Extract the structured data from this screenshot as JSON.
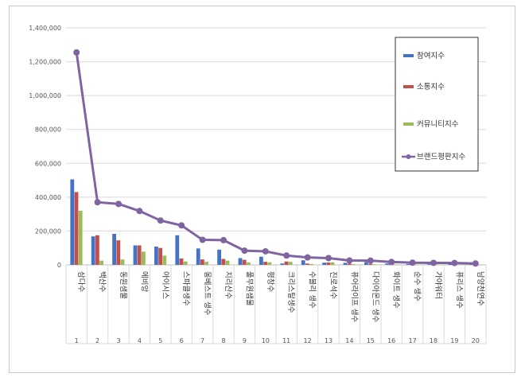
{
  "chart_data": {
    "type": "bar",
    "categories": [
      "삼다수",
      "백산수",
      "동원샘물",
      "에비앙",
      "아이시스",
      "스파클생수",
      "몽베스트 생수",
      "지리산수",
      "풀무원샘물",
      "평창수",
      "크리스탈생수",
      "수블리 생수",
      "진로석수",
      "퓨어라이프 생수",
      "다이아몬드 생수",
      "화이트 생수",
      "순수 생수",
      "가야워터",
      "퓨리스 생수",
      "남양천연수"
    ],
    "ranks": [
      "1",
      "2",
      "3",
      "4",
      "5",
      "6",
      "7",
      "8",
      "9",
      "10",
      "11",
      "12",
      "13",
      "14",
      "15",
      "16",
      "17",
      "18",
      "19",
      "20"
    ],
    "series": [
      {
        "name": "참여지수",
        "kind": "bar",
        "color": "#4472c4",
        "values": [
          505000,
          168000,
          183000,
          115000,
          108000,
          175000,
          97000,
          90000,
          40000,
          48000,
          8000,
          27000,
          13000,
          12000,
          17000,
          8000,
          5000,
          4000,
          5000,
          6000
        ]
      },
      {
        "name": "소통지수",
        "kind": "bar",
        "color": "#c0504d",
        "values": [
          430000,
          175000,
          145000,
          115000,
          100000,
          38000,
          32000,
          35000,
          30000,
          18000,
          20000,
          8000,
          14000,
          8000,
          6000,
          4000,
          3000,
          3000,
          3000,
          2000
        ]
      },
      {
        "name": "커뮤니티지수",
        "kind": "bar",
        "color": "#9bbb59",
        "values": [
          320000,
          25000,
          32000,
          78000,
          55000,
          20000,
          18000,
          25000,
          15000,
          15000,
          18000,
          5000,
          15000,
          4000,
          3000,
          3000,
          2000,
          2000,
          2000,
          1000
        ]
      },
      {
        "name": "브랜드평판지수",
        "kind": "line",
        "color": "#8064a2",
        "values": [
          1255000,
          370000,
          360000,
          318000,
          262000,
          233000,
          148000,
          146000,
          84000,
          80000,
          55000,
          44000,
          40000,
          26000,
          25000,
          17000,
          13000,
          12000,
          11000,
          8000
        ]
      }
    ],
    "yticks": [
      "0",
      "200,000",
      "400,000",
      "600,000",
      "800,000",
      "1,000,000",
      "1,200,000",
      "1,400,000"
    ],
    "ylim": [
      0,
      1400000
    ],
    "grid": true,
    "legend_position": "right"
  }
}
